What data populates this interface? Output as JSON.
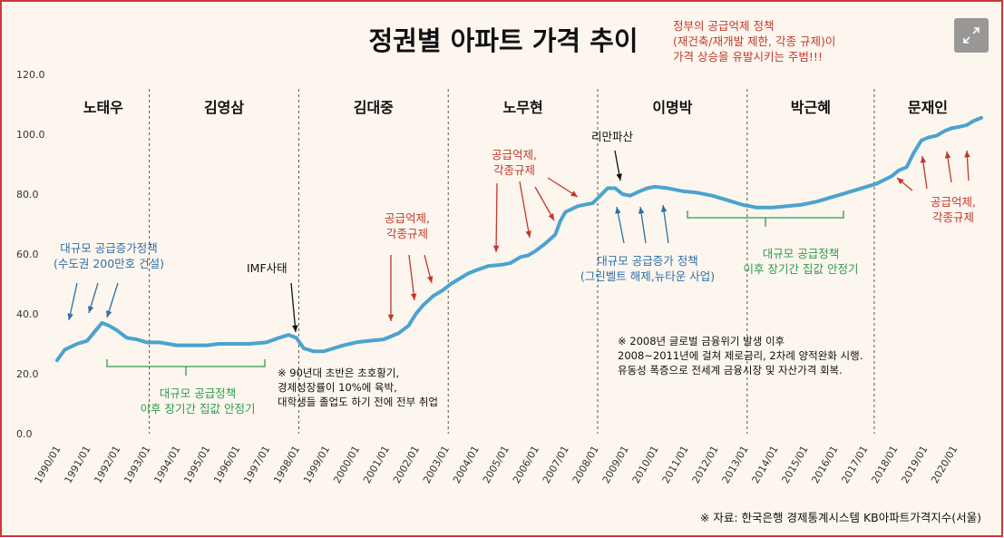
{
  "title": "정권별 아파트 가격 추이",
  "header_note": [
    "정부의 공급억제 정책",
    "(재건축/재개발 제한, 각종 규제)이",
    "가격 상승을 유발시키는 주범!!!"
  ],
  "source": "※ 자료: 한국은행 경제통계시스템 KB아파트가격지수(서울)",
  "colors": {
    "line": "#4ba3cf",
    "red": "#c0392b",
    "blue": "#2e6fa7",
    "green": "#2e9a4e",
    "border": "#cc3a3a",
    "background": "#fdf6ee"
  },
  "annotations": {
    "blue_supply_1": [
      "대규모 공급증가정책",
      "(수도권 200만호 건설)"
    ],
    "green_stable_1": [
      "대규모 공급정책",
      "이후 장기간 집값 안정기"
    ],
    "imf": "IMF사태",
    "note_90s": [
      "※ 90년대 초반은 초호황기,",
      "경제성장률이 10%에 육박,",
      "대학생들 졸업도 하기 전에 전부 취업"
    ],
    "red_suppress_1": [
      "공급억제,",
      "각종규제"
    ],
    "red_suppress_2": [
      "공급억제,",
      "각종규제"
    ],
    "lehman": "리만파산",
    "blue_supply_2": [
      "대규모 공급증가 정책",
      "(그린벨트 해제,뉴타운 사업)"
    ],
    "green_stable_2": [
      "대규모 공급정책",
      "이후 장기간 집값 안정기"
    ],
    "note_2008": [
      "※ 2008년 글로벌 금융위기 발생 이후",
      "2008~2011년에 걸쳐 제로금리, 2차례 양적완화 시행.",
      "유동성 폭증으로 전세계 금융시장 및 자산가격 회복."
    ],
    "red_suppress_3": [
      "공급억제,",
      "각종규제"
    ]
  },
  "expand_icon": "expand-icon",
  "chart_data": {
    "type": "line",
    "title": "정권별 아파트 가격 추이",
    "xlabel": "",
    "ylabel": "",
    "ylim": [
      0,
      120
    ],
    "xlim": [
      "1990/01",
      "2020/12"
    ],
    "y_ticks": [
      "0.0",
      "20.0",
      "40.0",
      "60.0",
      "80.0",
      "100.0",
      "120.0"
    ],
    "x_ticks": [
      "1990/01",
      "1991/01",
      "1992/01",
      "1993/01",
      "1994/01",
      "1995/01",
      "1996/01",
      "1997/01",
      "1998/01",
      "1999/01",
      "2000/01",
      "2001/01",
      "2002/01",
      "2003/01",
      "2004/01",
      "2005/01",
      "2006/01",
      "2007/01",
      "2008/01",
      "2009/01",
      "2010/01",
      "2011/01",
      "2012/01",
      "2013/01",
      "2014/01",
      "2015/01",
      "2016/01",
      "2017/01",
      "2018/01",
      "2019/01",
      "2020/01"
    ],
    "grid": false,
    "legend": "none",
    "regimes": [
      {
        "name": "노태우",
        "start": "1990/01",
        "end": "1993/02"
      },
      {
        "name": "김영삼",
        "start": "1993/02",
        "end": "1998/02"
      },
      {
        "name": "김대중",
        "start": "1998/02",
        "end": "2003/02"
      },
      {
        "name": "노무현",
        "start": "2003/02",
        "end": "2008/02"
      },
      {
        "name": "이명박",
        "start": "2008/02",
        "end": "2013/02"
      },
      {
        "name": "박근혜",
        "start": "2013/02",
        "end": "2017/05"
      },
      {
        "name": "문재인",
        "start": "2017/05",
        "end": "2020/12"
      }
    ],
    "series": [
      {
        "values": [
          [
            "1990/01",
            24.5
          ],
          [
            "1990/04",
            28
          ],
          [
            "1990/09",
            30
          ],
          [
            "1991/01",
            31
          ],
          [
            "1991/04",
            34
          ],
          [
            "1991/07",
            37
          ],
          [
            "1991/10",
            36
          ],
          [
            "1992/01",
            34.5
          ],
          [
            "1992/05",
            32
          ],
          [
            "1992/09",
            31.5
          ],
          [
            "1993/01",
            30.5
          ],
          [
            "1993/06",
            30.5
          ],
          [
            "1994/01",
            29.5
          ],
          [
            "1994/06",
            29.5
          ],
          [
            "1995/01",
            29.5
          ],
          [
            "1995/06",
            30
          ],
          [
            "1996/01",
            30
          ],
          [
            "1996/06",
            30
          ],
          [
            "1997/01",
            30.5
          ],
          [
            "1997/06",
            32
          ],
          [
            "1997/10",
            33
          ],
          [
            "1998/01",
            32
          ],
          [
            "1998/04",
            28.5
          ],
          [
            "1998/08",
            27.5
          ],
          [
            "1998/12",
            27.5
          ],
          [
            "1999/04",
            28.5
          ],
          [
            "1999/08",
            29.5
          ],
          [
            "2000/01",
            30.5
          ],
          [
            "2000/06",
            31
          ],
          [
            "2000/12",
            31.5
          ],
          [
            "2001/06",
            33.5
          ],
          [
            "2001/10",
            36
          ],
          [
            "2002/01",
            40
          ],
          [
            "2002/04",
            43
          ],
          [
            "2002/08",
            46
          ],
          [
            "2002/12",
            48
          ],
          [
            "2003/03",
            50
          ],
          [
            "2003/07",
            52
          ],
          [
            "2003/10",
            53.5
          ],
          [
            "2004/01",
            54.5
          ],
          [
            "2004/06",
            56
          ],
          [
            "2004/12",
            56.5
          ],
          [
            "2005/03",
            57
          ],
          [
            "2005/07",
            59
          ],
          [
            "2005/10",
            59.5
          ],
          [
            "2006/01",
            61
          ],
          [
            "2006/05",
            63.5
          ],
          [
            "2006/09",
            66.5
          ],
          [
            "2006/11",
            71
          ],
          [
            "2007/01",
            74
          ],
          [
            "2007/06",
            76
          ],
          [
            "2007/12",
            77
          ],
          [
            "2008/03",
            79.5
          ],
          [
            "2008/06",
            82
          ],
          [
            "2008/09",
            82
          ],
          [
            "2008/12",
            80
          ],
          [
            "2009/03",
            79.5
          ],
          [
            "2009/07",
            81
          ],
          [
            "2009/10",
            82
          ],
          [
            "2010/01",
            82.5
          ],
          [
            "2010/06",
            82
          ],
          [
            "2010/12",
            81
          ],
          [
            "2011/06",
            80.5
          ],
          [
            "2011/12",
            79.5
          ],
          [
            "2012/06",
            78
          ],
          [
            "2012/12",
            76.5
          ],
          [
            "2013/06",
            75.5
          ],
          [
            "2013/12",
            75.5
          ],
          [
            "2014/06",
            76
          ],
          [
            "2014/12",
            76.5
          ],
          [
            "2015/06",
            77.5
          ],
          [
            "2015/12",
            79
          ],
          [
            "2016/06",
            80.5
          ],
          [
            "2016/12",
            82
          ],
          [
            "2017/06",
            83.5
          ],
          [
            "2017/12",
            86
          ],
          [
            "2018/03",
            88
          ],
          [
            "2018/06",
            89
          ],
          [
            "2018/09",
            94
          ],
          [
            "2018/12",
            98
          ],
          [
            "2019/03",
            99
          ],
          [
            "2019/06",
            99.5
          ],
          [
            "2019/09",
            101
          ],
          [
            "2019/12",
            102
          ],
          [
            "2020/03",
            102.5
          ],
          [
            "2020/06",
            103
          ],
          [
            "2020/09",
            104.5
          ],
          [
            "2020/12",
            105.5
          ]
        ]
      }
    ]
  }
}
